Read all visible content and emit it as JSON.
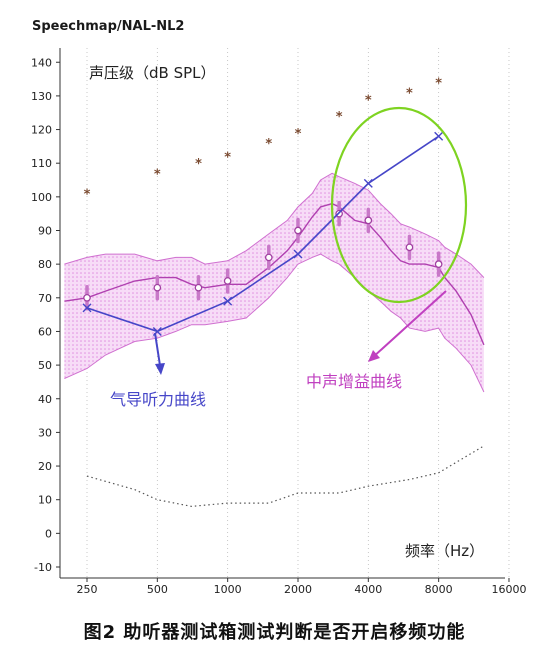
{
  "chart_data": {
    "type": "line",
    "title": "Speechmap/NAL-NL2",
    "ylabel": "声压级（dB SPL）",
    "xlabel": "频率（Hz）",
    "ylim": [
      -10,
      145
    ],
    "yticks": [
      -10,
      0,
      10,
      20,
      30,
      40,
      50,
      60,
      70,
      80,
      90,
      100,
      110,
      120,
      130,
      140
    ],
    "xticks": [
      "250",
      "500",
      "1000",
      "2000",
      "4000",
      "8000",
      "16000"
    ],
    "xtick_values": [
      250,
      500,
      1000,
      2000,
      4000,
      8000,
      16000
    ],
    "xscale": "log",
    "grid": "vertical dotted",
    "series": [
      {
        "name": "气导听力曲线",
        "marker": "x",
        "color": "#4646c8",
        "x": [
          250,
          500,
          1000,
          2000,
          4000,
          8000
        ],
        "y": [
          67,
          60,
          69,
          83,
          104,
          118
        ]
      },
      {
        "name": "中声增益曲线",
        "color": "#b040b0",
        "x": [
          200,
          250,
          300,
          400,
          500,
          600,
          700,
          800,
          1000,
          1200,
          1500,
          1800,
          2000,
          2300,
          2500,
          2800,
          3000,
          3500,
          4000,
          4500,
          5000,
          5500,
          6000,
          7000,
          8000,
          8500,
          9500,
          11000,
          12500
        ],
        "y": [
          69,
          70,
          72,
          75,
          76,
          76,
          74,
          73,
          74,
          74,
          79,
          84,
          88,
          94,
          97,
          98,
          97,
          93,
          92,
          88,
          84,
          81,
          80,
          80,
          79,
          76,
          72,
          65,
          56
        ]
      },
      {
        "name": "band-upper",
        "color": "#d070d0",
        "x": [
          200,
          250,
          300,
          400,
          500,
          600,
          700,
          800,
          1000,
          1200,
          1500,
          1800,
          2000,
          2300,
          2500,
          2800,
          3000,
          3500,
          4000,
          4500,
          5000,
          5500,
          6000,
          7000,
          8000,
          8500,
          9500,
          11000,
          12500
        ],
        "y": [
          80,
          82,
          83,
          83,
          81,
          82,
          82,
          80,
          81,
          84,
          89,
          93,
          97,
          101,
          105,
          107,
          106,
          104,
          102,
          98,
          95,
          92,
          91,
          89,
          87,
          85,
          83,
          80,
          76
        ]
      },
      {
        "name": "band-lower",
        "color": "#d070d0",
        "x": [
          200,
          250,
          300,
          400,
          500,
          600,
          700,
          800,
          1000,
          1200,
          1500,
          1800,
          2000,
          2300,
          2500,
          2800,
          3000,
          3500,
          4000,
          4500,
          5000,
          5500,
          6000,
          7000,
          8000,
          8500,
          9500,
          11000,
          12500
        ],
        "y": [
          46,
          49,
          53,
          57,
          58,
          60,
          62,
          62,
          63,
          64,
          70,
          76,
          80,
          82,
          83,
          81,
          80,
          76,
          72,
          69,
          66,
          64,
          61,
          60,
          61,
          58,
          55,
          50,
          42
        ]
      },
      {
        "name": "asterisk",
        "marker": "*",
        "color": "#8a5a3a",
        "x": [
          250,
          500,
          750,
          1000,
          1500,
          2000,
          3000,
          4000,
          6000,
          8000
        ],
        "y": [
          101,
          107,
          110,
          112,
          116,
          119,
          124,
          129,
          131,
          134
        ]
      },
      {
        "name": "dotted-floor",
        "style": "dotted",
        "color": "#666666",
        "x": [
          250,
          400,
          500,
          700,
          1000,
          1500,
          2000,
          3000,
          4000,
          6000,
          8000,
          10000,
          12500
        ],
        "y": [
          17,
          13,
          10,
          8,
          9,
          9,
          12,
          12,
          14,
          16,
          18,
          22,
          26
        ]
      },
      {
        "name": "markers",
        "marker": "o",
        "color": "#c060c0",
        "x": [
          250,
          500,
          750,
          1000,
          1500,
          2000,
          3000,
          4000,
          6000,
          8000
        ],
        "y": [
          70,
          73,
          73,
          75,
          82,
          90,
          95,
          93,
          85,
          80
        ]
      }
    ],
    "annotations": [
      {
        "text": "气导听力曲线",
        "color": "#4646c8"
      },
      {
        "text": "中声增益曲线",
        "color": "#c040c0"
      }
    ]
  },
  "caption": "图2  助听器测试箱测试判断是否开启移频功能",
  "colors": {
    "highlight_ellipse": "#7ed321",
    "band_fill": "#e8a8e8"
  }
}
